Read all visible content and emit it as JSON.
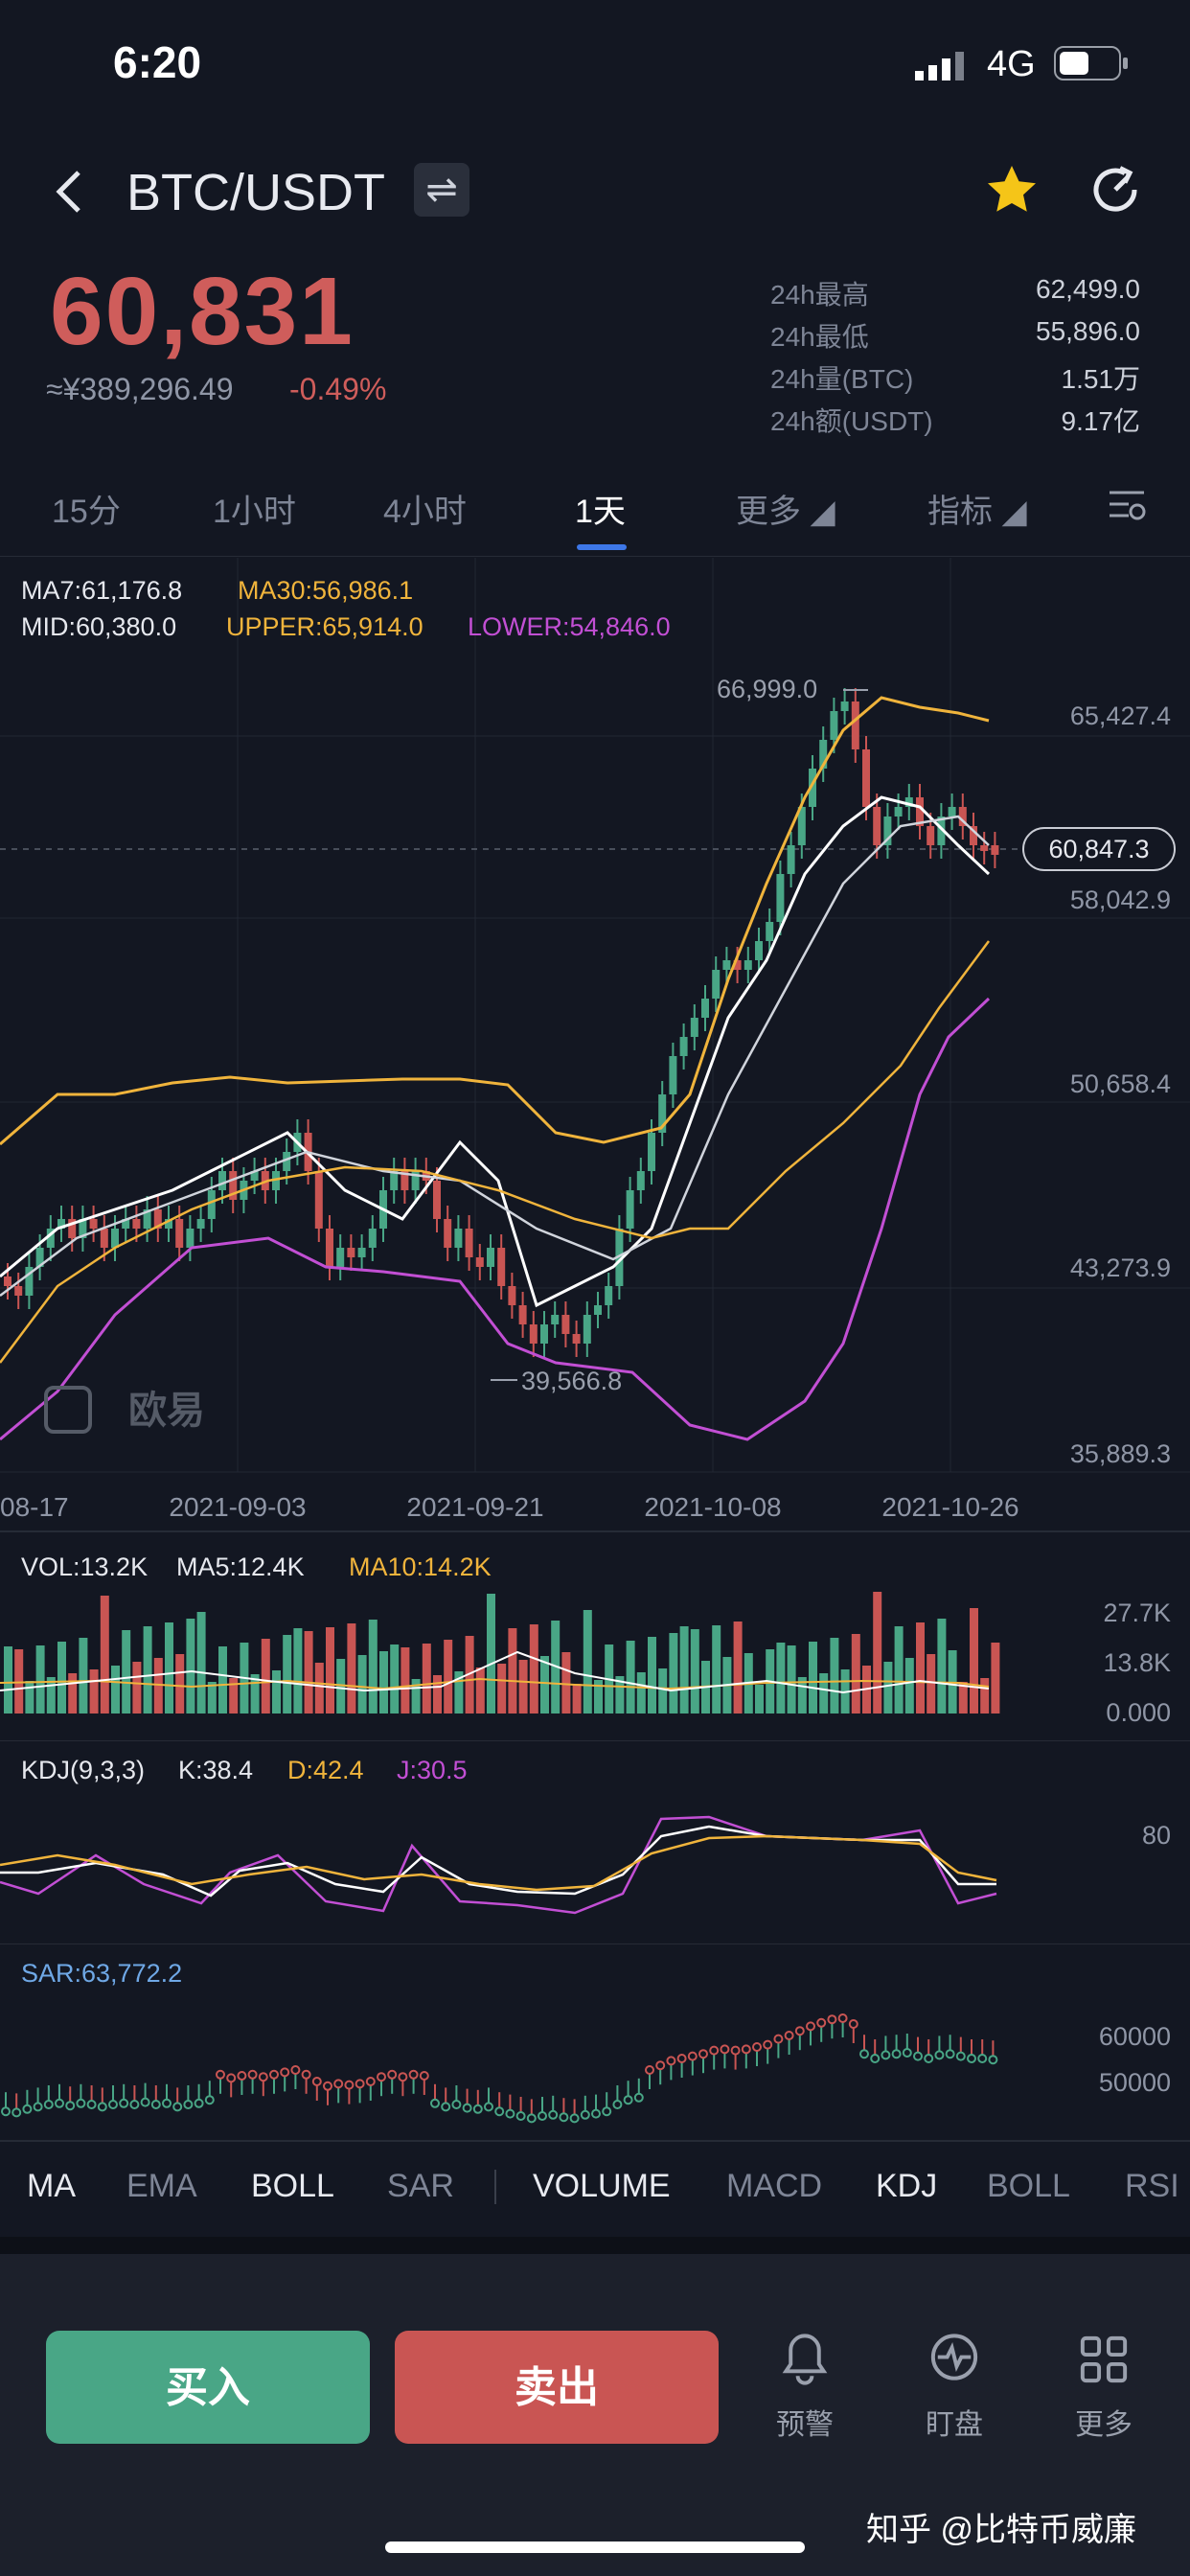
{
  "status_bar": {
    "time": "6:20",
    "network": "4G"
  },
  "header": {
    "pair": "BTC/USDT",
    "swap_icon": "swap-icon",
    "favorite_icon": "star-icon",
    "share_icon": "share-icon"
  },
  "price": {
    "last": "60,831",
    "cny": "≈¥389,296.49",
    "change": "-0.49%"
  },
  "stats": [
    {
      "label": "24h最高",
      "value": "62,499.0"
    },
    {
      "label": "24h最低",
      "value": "55,896.0"
    },
    {
      "label": "24h量(BTC)",
      "value": "1.51万"
    },
    {
      "label": "24h额(USDT)",
      "value": "9.17亿"
    }
  ],
  "timeframes": [
    "15分",
    "1小时",
    "4小时",
    "1天",
    "更多 ◢",
    "指标 ◢"
  ],
  "active_timeframe": "1天",
  "main_chart": {
    "ma7": "MA7:61,176.8",
    "ma30": "MA30:56,986.1",
    "mid": "MID:60,380.0",
    "upper": "UPPER:65,914.0",
    "lower": "LOWER:54,846.0",
    "price_labels": [
      "65,427.4",
      "58,042.9",
      "50,658.4",
      "43,273.9",
      "35,889.3"
    ],
    "current_price_tag": "60,847.3",
    "high_label": "66,999.0",
    "low_label": "39,566.8",
    "dates": [
      "08-17",
      "2021-09-03",
      "2021-09-21",
      "2021-10-08",
      "2021-10-26"
    ],
    "watermark": "欧易"
  },
  "volume": {
    "vol": "VOL:13.2K",
    "ma5": "MA5:12.4K",
    "ma10": "MA10:14.2K",
    "axis": [
      "27.7K",
      "13.8K",
      "0.000"
    ]
  },
  "kdj": {
    "title": "KDJ(9,3,3)",
    "k": "K:38.4",
    "d": "D:42.4",
    "j": "J:30.5",
    "axis": "80"
  },
  "sar": {
    "title": "SAR:63,772.2",
    "axis": [
      "60000",
      "50000"
    ]
  },
  "indicator_tabs": [
    "MA",
    "EMA",
    "BOLL",
    "SAR",
    "VOLUME",
    "MACD",
    "KDJ",
    "BOLL",
    "RSI"
  ],
  "actions": {
    "buy": "买入",
    "sell": "卖出",
    "alert": "预警",
    "watch": "盯盘",
    "more": "更多"
  },
  "source_watermark": "知乎 @比特币威廉",
  "colors": {
    "up": "#49a686",
    "down": "#c95553",
    "ma7": "#ffffff",
    "ma30": "#f0b43c",
    "lower": "#c24fd4",
    "accent": "#3d77e8"
  }
}
